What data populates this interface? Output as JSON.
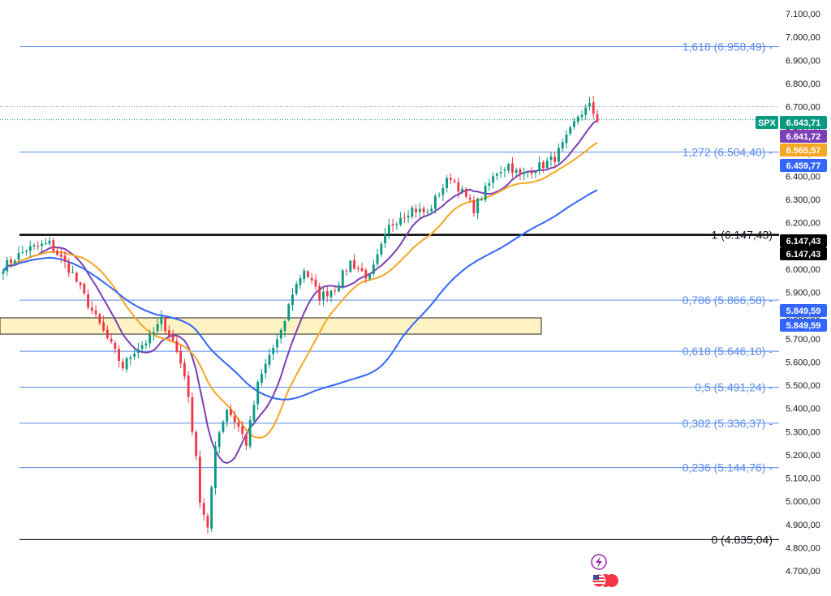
{
  "chart_data": {
    "type": "candlestick",
    "symbol": "SPX",
    "y_axis": {
      "min": 4650,
      "max": 7150,
      "ticks": [
        "7.100,00",
        "7.000,00",
        "6.900,00",
        "6.800,00",
        "6.700,00",
        "6.600,00",
        "6.500,00",
        "6.400,00",
        "6.300,00",
        "6.200,00",
        "6.100,00",
        "6.000,00",
        "5.900,00",
        "5.800,00",
        "5.700,00",
        "5.600,00",
        "5.500,00",
        "5.400,00",
        "5.300,00",
        "5.200,00",
        "5.100,00",
        "5.000,00",
        "4.900,00",
        "4.800,00",
        "4.700,00"
      ],
      "tick_values": [
        7100,
        7000,
        6900,
        6800,
        6700,
        6600,
        6500,
        6400,
        6300,
        6200,
        6100,
        6000,
        5900,
        5800,
        5700,
        5600,
        5500,
        5400,
        5300,
        5200,
        5100,
        5000,
        4900,
        4800,
        4700
      ]
    },
    "fib_levels": [
      {
        "label": "1,618 (6.958,49)",
        "value": 6958.49,
        "color": "#5b8def"
      },
      {
        "label": "1,272 (6.504,40)",
        "value": 6504.4,
        "color": "#5b8def"
      },
      {
        "label": "1 (6.147,43)",
        "value": 6147.43,
        "color": "#000000"
      },
      {
        "label": "0,786 (5.866,58)",
        "value": 5866.58,
        "color": "#5b8def"
      },
      {
        "label": "0,618 (5.646,10)",
        "value": 5646.1,
        "color": "#5b8def"
      },
      {
        "label": "0,5 (5.491,24)",
        "value": 5491.24,
        "color": "#5b8def"
      },
      {
        "label": "0,382 (5.336,37)",
        "value": 5336.37,
        "color": "#5b8def"
      },
      {
        "label": "0,236 (5.144,76)",
        "value": 5144.76,
        "color": "#5b8def"
      },
      {
        "label": "0 (4.835,04)",
        "value": 4835.04,
        "color": "#000000"
      }
    ],
    "price_badges": [
      {
        "label": "SPX",
        "value": "6.643,71",
        "color": "#089981"
      },
      {
        "label": "",
        "value": "6.641,72",
        "color": "#7b3fb8"
      },
      {
        "label": "",
        "value": "6.565,57",
        "color": "#f5a623"
      },
      {
        "label": "",
        "value": "6.459,77",
        "color": "#3366ff"
      },
      {
        "label": "",
        "value": "6.147,43",
        "color": "#000000"
      },
      {
        "label": "",
        "value": "6.147,43",
        "color": "#000000"
      },
      {
        "label": "",
        "value": "5.849,59",
        "color": "#3366ff"
      },
      {
        "label": "",
        "value": "5.849,59",
        "color": "#3366ff"
      }
    ],
    "zone": {
      "low": 5720,
      "high": 5790,
      "color": "#fff3c4"
    },
    "reference_lines": [
      {
        "value": 6700,
        "style": "dotted",
        "color": "#7f8590"
      },
      {
        "value": 6643.71,
        "style": "dotted",
        "color": "#089981"
      }
    ],
    "moving_averages": [
      {
        "color": "#7b3fb8",
        "period": 10
      },
      {
        "color": "#f5a623",
        "period": 20
      },
      {
        "color": "#3366ff",
        "period": 50
      }
    ],
    "candle_anchors": [
      [
        0,
        6010
      ],
      [
        6,
        6085
      ],
      [
        12,
        6110
      ],
      [
        18,
        5980
      ],
      [
        22,
        5850
      ],
      [
        27,
        5700
      ],
      [
        31,
        5580
      ],
      [
        34,
        5650
      ],
      [
        38,
        5700
      ],
      [
        41,
        5780
      ],
      [
        44,
        5690
      ],
      [
        47,
        5550
      ],
      [
        50,
        5200
      ],
      [
        51,
        5000
      ],
      [
        53,
        4870
      ],
      [
        55,
        5250
      ],
      [
        58,
        5400
      ],
      [
        61,
        5320
      ],
      [
        63,
        5250
      ],
      [
        66,
        5500
      ],
      [
        69,
        5630
      ],
      [
        72,
        5720
      ],
      [
        75,
        5900
      ],
      [
        78,
        6000
      ],
      [
        82,
        5880
      ],
      [
        86,
        5920
      ],
      [
        90,
        6030
      ],
      [
        95,
        5960
      ],
      [
        100,
        6180
      ],
      [
        103,
        6230
      ],
      [
        106,
        6260
      ],
      [
        110,
        6240
      ],
      [
        113,
        6330
      ],
      [
        116,
        6400
      ],
      [
        119,
        6330
      ],
      [
        122,
        6260
      ],
      [
        125,
        6340
      ],
      [
        128,
        6420
      ],
      [
        131,
        6450
      ],
      [
        134,
        6400
      ],
      [
        137,
        6430
      ],
      [
        140,
        6450
      ],
      [
        143,
        6480
      ],
      [
        146,
        6560
      ],
      [
        149,
        6660
      ],
      [
        152,
        6700
      ],
      [
        154,
        6645
      ]
    ],
    "candles_total": 155,
    "colors": {
      "up": "#089981",
      "down": "#f23645"
    }
  },
  "icons": {
    "event_icon": "lightning-icon",
    "flag_icon": "us-flag-icon"
  }
}
